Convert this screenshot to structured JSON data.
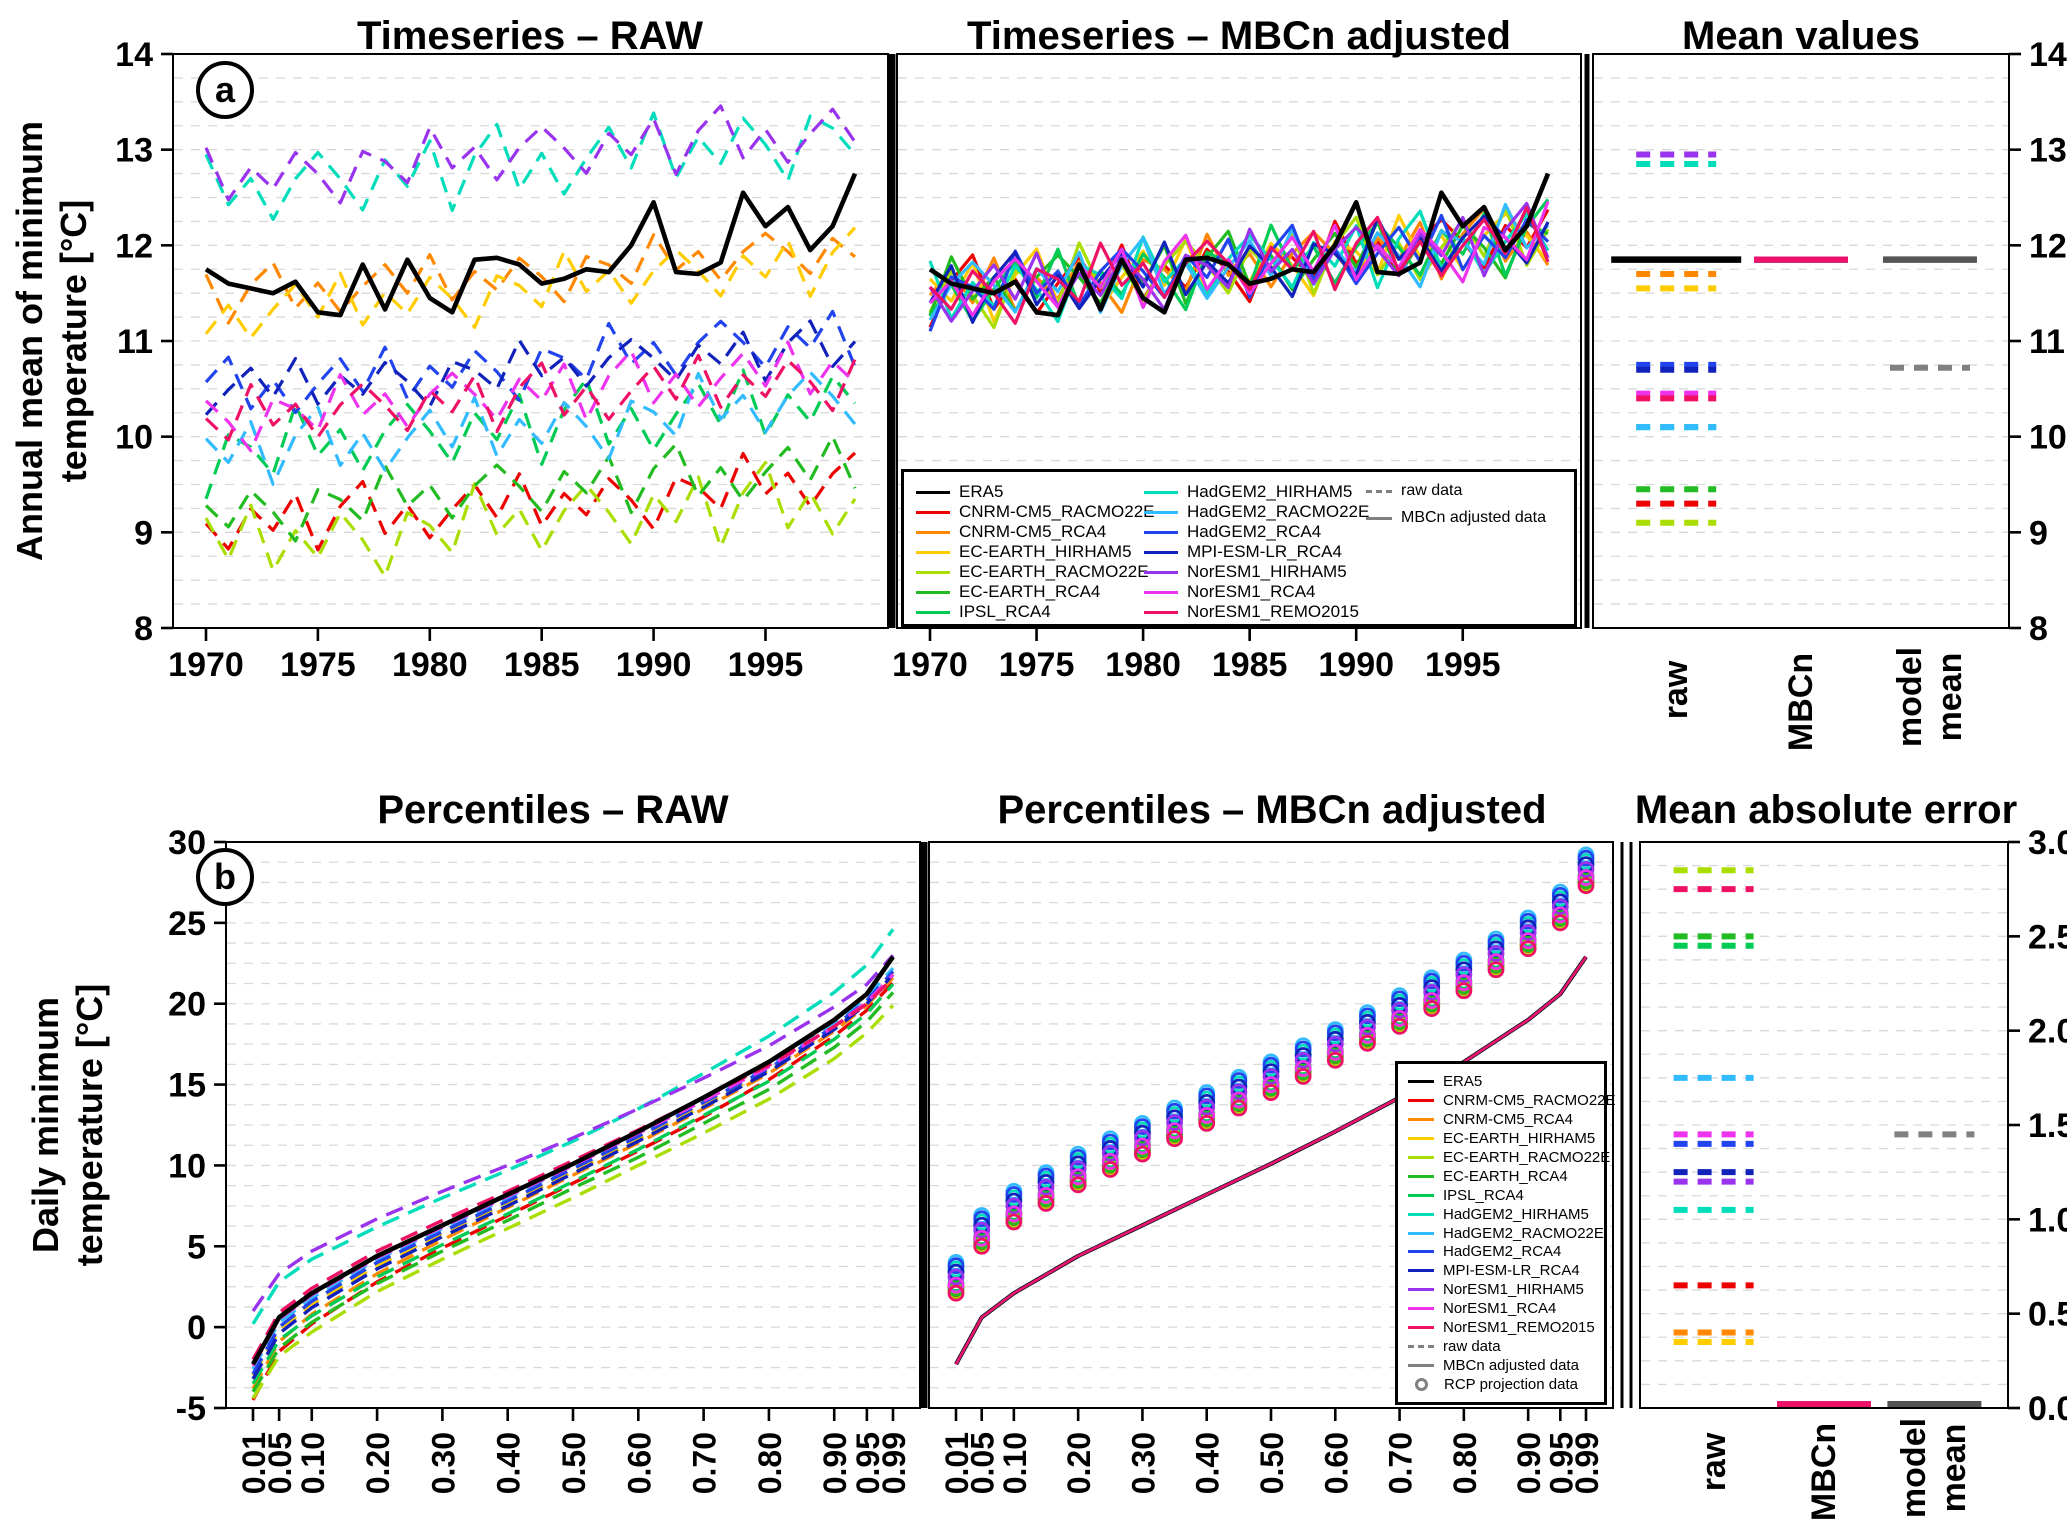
{
  "figure": {
    "panel_a_label": "a",
    "panel_b_label": "b",
    "titles": {
      "ts_raw": "Timeseries – RAW",
      "ts_adj": "Timeseries – MBCn adjusted",
      "mean_values": "Mean values",
      "pct_raw": "Percentiles – RAW",
      "pct_adj": "Percentiles – MBCn adjusted",
      "mae": "Mean absolute error"
    },
    "ylabel_a": "Annual mean of minimum\ntemperature [°C]",
    "ylabel_b": "Daily minimum\ntemperature [°C]",
    "col_labels": {
      "raw": "raw",
      "mbcn": "MBCn",
      "model_mean": "model\nmean"
    }
  },
  "legend": {
    "raw_label": "raw data",
    "adj_label": "MBCn adjusted data",
    "proj_label": "RCP projection data"
  },
  "chart_data": {
    "type": "line",
    "panels": {
      "timeseries_raw": {
        "x_range": [
          1970,
          1999
        ],
        "x_ticks": [
          1970,
          1975,
          1980,
          1985,
          1990,
          1995
        ],
        "ylim": [
          8,
          14
        ],
        "grid_step": 0.25
      },
      "timeseries_mbcn": {
        "x_range": [
          1970,
          1999
        ],
        "x_ticks": [
          1970,
          1975,
          1980,
          1985,
          1990,
          1995
        ],
        "ylim": [
          8,
          14
        ],
        "grid_step": 0.25
      },
      "mean_values": {
        "ylim": [
          8,
          14
        ],
        "columns": [
          "raw",
          "MBCn",
          "model mean"
        ]
      },
      "percentiles_raw": {
        "ylim": [
          -5,
          30
        ],
        "grid_step": 1.25
      },
      "percentiles_mbcn": {
        "ylim": [
          -5,
          30
        ],
        "grid_step": 1.25
      },
      "mae": {
        "ylim": [
          0,
          3
        ],
        "grid_step": 0.125,
        "columns": [
          "raw",
          "MBCn",
          "model mean"
        ]
      }
    },
    "axes": {
      "y_ticks_a": [
        8,
        9,
        10,
        11,
        12,
        13,
        14
      ],
      "y_ticks_b": [
        -5,
        0,
        5,
        10,
        15,
        20,
        25,
        30
      ],
      "y_ticks_mae": [
        0,
        0.5,
        1,
        1.5,
        2,
        2.5,
        3
      ],
      "y_tick_labels_mae": [
        "0.0",
        "0.5",
        "1.0",
        "1.5",
        "2.0",
        "2.5",
        "3.0"
      ]
    },
    "p_values": [
      0.01,
      0.05,
      0.1,
      0.2,
      0.3,
      0.4,
      0.5,
      0.6,
      0.7,
      0.8,
      0.9,
      0.95,
      0.99
    ],
    "p_tick_labels": [
      "0.01",
      "0.05",
      "0.10",
      "0.20",
      "0.30",
      "0.40",
      "0.50",
      "0.60",
      "0.70",
      "0.80",
      "0.90",
      "0.95",
      "0.99"
    ],
    "proj_p": [
      0.01,
      0.05,
      0.1,
      0.15,
      0.2,
      0.25,
      0.3,
      0.35,
      0.4,
      0.45,
      0.5,
      0.55,
      0.6,
      0.65,
      0.7,
      0.75,
      0.8,
      0.85,
      0.9,
      0.95,
      0.99
    ],
    "noise": [
      0.1,
      -0.6,
      0.4,
      -0.2,
      0.7,
      -0.8,
      0.3,
      0.9,
      -0.5,
      0.2,
      -0.7,
      0.0,
      0.6,
      -0.3,
      0.8,
      -0.6,
      0.2,
      -0.4,
      0.5,
      -0.1,
      -0.9,
      0.4,
      0.1,
      -0.5,
      0.9,
      -0.2,
      0.3,
      -0.6,
      0.2,
      0.7
    ],
    "era5": {
      "label": "ERA5",
      "color": "#000000",
      "mean": 11.85,
      "timeseries": [
        11.75,
        11.6,
        11.55,
        11.5,
        11.62,
        11.3,
        11.27,
        11.8,
        11.33,
        11.85,
        11.45,
        11.3,
        11.85,
        11.87,
        11.8,
        11.6,
        11.65,
        11.75,
        11.72,
        12.0,
        12.45,
        11.72,
        11.7,
        11.82,
        12.55,
        12.2,
        12.4,
        11.95,
        12.2,
        12.75
      ],
      "percentiles": [
        -2.3,
        0.6,
        2.1,
        4.4,
        6.3,
        8.2,
        10.1,
        12.1,
        14.2,
        16.4,
        19.0,
        20.6,
        22.9
      ]
    },
    "adj": {
      "mean": 11.78,
      "amp": 0.32,
      "trend": 0.6,
      "mbcn_mean": 11.85,
      "mbcn_mae": 0.02
    },
    "model_mean": {
      "raw_mean": 10.72,
      "mbcn_mean": 11.85,
      "raw_mae": 1.45,
      "mbcn_mae": 0.02
    },
    "models": [
      {
        "label": "CNRM-CM5_RACMO22E",
        "color": "#ee0000",
        "raw_mean": 9.3,
        "mae": 0.65,
        "ts_amp": 0.4,
        "ts_trend": 0.5,
        "ts_phase": 0,
        "adj_phase": 5,
        "proj_offset": 4.6,
        "percentiles": [
          -4.5,
          -1.5,
          0.2,
          2.8,
          4.9,
          6.9,
          8.9,
          10.9,
          13.0,
          15.3,
          18.0,
          19.6,
          21.3
        ]
      },
      {
        "label": "CNRM-CM5_RCA4",
        "color": "#ff8800",
        "raw_mean": 11.7,
        "mae": 0.4,
        "ts_amp": 0.35,
        "ts_trend": 0.5,
        "ts_phase": 4,
        "adj_phase": 11,
        "proj_offset": 4.8,
        "percentiles": [
          -3.8,
          -0.9,
          0.8,
          3.3,
          5.4,
          7.4,
          9.4,
          11.4,
          13.5,
          15.7,
          18.3,
          19.9,
          21.6
        ]
      },
      {
        "label": "EC-EARTH_HIRHAM5",
        "color": "#ffcc00",
        "raw_mean": 11.55,
        "mae": 0.35,
        "ts_amp": 0.4,
        "ts_trend": 0.55,
        "ts_phase": 8,
        "adj_phase": 2,
        "proj_offset": 4.9,
        "percentiles": [
          -3.0,
          -0.2,
          1.4,
          3.8,
          5.8,
          7.7,
          9.6,
          11.6,
          13.7,
          15.9,
          18.5,
          20.1,
          21.9
        ]
      },
      {
        "label": "EC-EARTH_RACMO22E",
        "color": "#aadd00",
        "raw_mean": 9.1,
        "mae": 2.85,
        "ts_amp": 0.5,
        "ts_trend": 0.5,
        "ts_phase": 12,
        "adj_phase": 17,
        "proj_offset": 4.5,
        "percentiles": [
          -4.4,
          -1.8,
          -0.3,
          2.2,
          4.2,
          6.1,
          8.0,
          10.0,
          12.0,
          14.1,
          16.6,
          18.2,
          19.9
        ]
      },
      {
        "label": "EC-EARTH_RCA4",
        "color": "#22bb22",
        "raw_mean": 9.45,
        "mae": 2.5,
        "ts_amp": 0.4,
        "ts_trend": 0.5,
        "ts_phase": 16,
        "adj_phase": 23,
        "proj_offset": 4.7,
        "percentiles": [
          -4.0,
          -1.3,
          0.3,
          2.7,
          4.7,
          6.6,
          8.6,
          10.5,
          12.6,
          14.7,
          17.3,
          18.9,
          20.7
        ]
      },
      {
        "label": "IPSL_RCA4",
        "color": "#00cc55",
        "raw_mean": 10.1,
        "mae": 2.45,
        "ts_amp": 0.5,
        "ts_trend": 0.6,
        "ts_phase": 20,
        "adj_phase": 8,
        "proj_offset": 5.0,
        "percentiles": [
          -3.5,
          -0.8,
          0.7,
          3.1,
          5.1,
          7.0,
          9.0,
          11.0,
          13.1,
          15.2,
          17.8,
          19.4,
          21.2
        ]
      },
      {
        "label": "HadGEM2_HIRHAM5",
        "color": "#00ddbb",
        "raw_mean": 12.85,
        "mae": 1.05,
        "ts_amp": 0.5,
        "ts_trend": 0.7,
        "ts_phase": 24,
        "adj_phase": 14,
        "proj_offset": 5.9,
        "percentiles": [
          0.2,
          2.8,
          4.2,
          6.2,
          8.0,
          9.7,
          11.5,
          13.5,
          15.7,
          18.0,
          20.7,
          22.4,
          24.6
        ]
      },
      {
        "label": "HadGEM2_RACMO22E",
        "color": "#33bbff",
        "raw_mean": 10.1,
        "mae": 1.75,
        "ts_amp": 0.45,
        "ts_trend": 0.6,
        "ts_phase": 2,
        "adj_phase": 27,
        "proj_offset": 6.3,
        "percentiles": [
          -2.6,
          0.3,
          1.8,
          4.2,
          6.1,
          8.0,
          10.0,
          12.0,
          14.1,
          16.2,
          18.8,
          20.4,
          22.2
        ]
      },
      {
        "label": "HadGEM2_RCA4",
        "color": "#2244ee",
        "raw_mean": 10.75,
        "mae": 1.4,
        "ts_amp": 0.4,
        "ts_trend": 0.6,
        "ts_phase": 6,
        "adj_phase": 20,
        "proj_offset": 6.1,
        "percentiles": [
          -2.9,
          0.0,
          1.6,
          4.0,
          5.9,
          7.8,
          9.8,
          11.8,
          13.9,
          16.0,
          18.6,
          20.2,
          22.0
        ]
      },
      {
        "label": "MPI-ESM-LR_RCA4",
        "color": "#1122bb",
        "raw_mean": 10.7,
        "mae": 1.25,
        "ts_amp": 0.35,
        "ts_trend": 0.45,
        "ts_phase": 10,
        "adj_phase": 3,
        "proj_offset": 5.7,
        "percentiles": [
          -3.2,
          -0.4,
          1.2,
          3.6,
          5.6,
          7.5,
          9.5,
          11.5,
          13.6,
          15.8,
          18.4,
          20.0,
          21.8
        ]
      },
      {
        "label": "NorESM1_HIRHAM5",
        "color": "#9933ee",
        "raw_mean": 12.95,
        "mae": 1.2,
        "ts_amp": 0.4,
        "ts_trend": 0.5,
        "ts_phase": 14,
        "adj_phase": 9,
        "proj_offset": 5.4,
        "percentiles": [
          1.0,
          3.3,
          4.7,
          6.7,
          8.4,
          10.0,
          11.7,
          13.5,
          15.4,
          17.4,
          19.8,
          21.2,
          23.0
        ]
      },
      {
        "label": "NorESM1_RCA4",
        "color": "#ee33ee",
        "raw_mean": 10.45,
        "mae": 1.45,
        "ts_amp": 0.4,
        "ts_trend": 0.55,
        "ts_phase": 18,
        "adj_phase": 25,
        "proj_offset": 4.9,
        "percentiles": [
          -2.4,
          0.5,
          2.0,
          4.3,
          6.2,
          8.1,
          10.0,
          12.0,
          14.0,
          16.1,
          18.6,
          20.1,
          21.8
        ]
      },
      {
        "label": "NorESM1_REMO2015",
        "color": "#ee1166",
        "raw_mean": 10.4,
        "mae": 2.75,
        "ts_amp": 0.4,
        "ts_trend": 0.5,
        "ts_phase": 22,
        "adj_phase": 16,
        "proj_offset": 4.4,
        "percentiles": [
          -2.0,
          0.9,
          2.4,
          4.7,
          6.6,
          8.4,
          10.3,
          12.2,
          14.2,
          16.2,
          18.6,
          20.0,
          21.6
        ]
      }
    ]
  }
}
